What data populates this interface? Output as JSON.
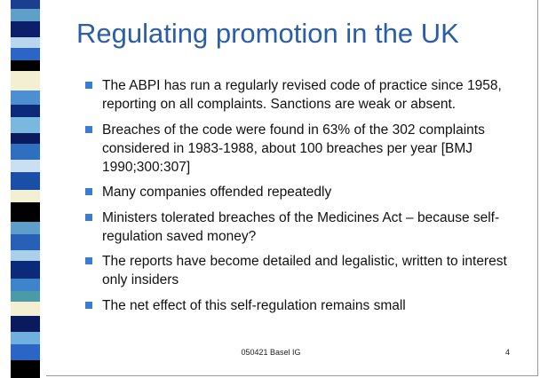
{
  "title": "Regulating promotion in the UK",
  "bullets": [
    "The ABPI has run a regularly revised code of practice since 1958, reporting on all complaints.  Sanctions are weak or absent.",
    "Breaches of the code were found in 63% of the 302 complaints considered in 1983-1988, about 100 breaches per year [BMJ 1990;300:307]",
    "Many companies offended repeatedly",
    "Ministers tolerated breaches of the Medicines Act – because self-regulation saved money?",
    "The reports have become detailed and legalistic, written to interest only insiders",
    "The net effect of this self-regulation remains small"
  ],
  "footer": {
    "text": "050421 Basel IG",
    "page": "4"
  }
}
